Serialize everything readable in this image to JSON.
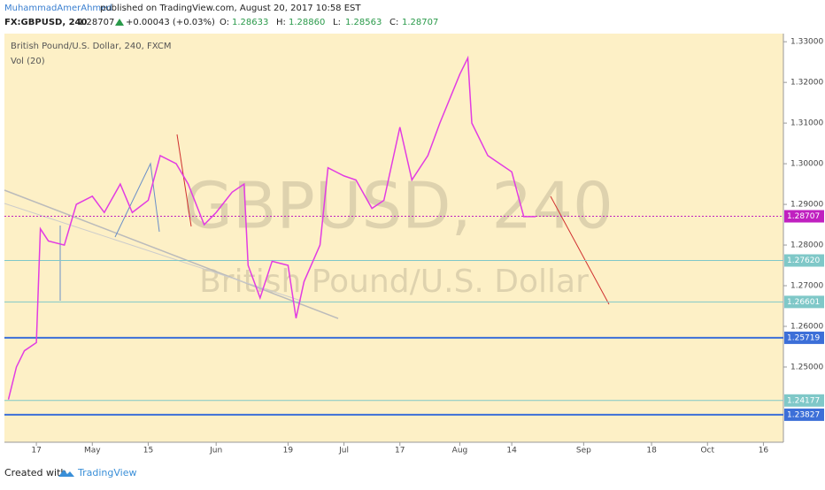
{
  "chart_data": {
    "type": "line",
    "author": "MuhammadAmerAhmed",
    "published": "published on TradingView.com, August 20, 2017 10:58 EST",
    "symbol": "FX:GBPUSD, 240",
    "last": "1.28707",
    "change": "+0.00043 (+0.03%)",
    "ohlc": [
      {
        "label": "O:",
        "value": "1.28633"
      },
      {
        "label": "H:",
        "value": "1.28860"
      },
      {
        "label": "L:",
        "value": "1.28563"
      },
      {
        "label": "C:",
        "value": "1.28707"
      }
    ],
    "title": "British Pound/U.S. Dollar, 240, FXCM",
    "indicator": "Vol (20)",
    "watermark": "GBPUSD, 240",
    "watermark_sub": "British Pound/U.S. Dollar",
    "footer": "Created with",
    "brand": "TradingView",
    "xlim": [
      "2017-04-09",
      "2017-10-21"
    ],
    "xticks": [
      {
        "value": "2017-04-17",
        "label": "17"
      },
      {
        "value": "2017-05-01",
        "label": "May"
      },
      {
        "value": "2017-05-15",
        "label": "15"
      },
      {
        "value": "2017-06-01",
        "label": "Jun"
      },
      {
        "value": "2017-06-19",
        "label": "19"
      },
      {
        "value": "2017-07-03",
        "label": "Jul"
      },
      {
        "value": "2017-07-17",
        "label": "17"
      },
      {
        "value": "2017-08-01",
        "label": "Aug"
      },
      {
        "value": "2017-08-14",
        "label": "14"
      },
      {
        "value": "2017-09-01",
        "label": "Sep"
      },
      {
        "value": "2017-09-18",
        "label": "18"
      },
      {
        "value": "2017-10-02",
        "label": "Oct"
      },
      {
        "value": "2017-10-16",
        "label": "16"
      }
    ],
    "ylim": [
      1.2315,
      1.332
    ],
    "yticks": [
      {
        "value": 1.25,
        "label": "1.25000"
      },
      {
        "value": 1.26,
        "label": "1.26000"
      },
      {
        "value": 1.27,
        "label": "1.27000"
      },
      {
        "value": 1.28,
        "label": "1.28000"
      },
      {
        "value": 1.29,
        "label": "1.29000"
      },
      {
        "value": 1.3,
        "label": "1.30000"
      },
      {
        "value": 1.31,
        "label": "1.31000"
      },
      {
        "value": 1.32,
        "label": "1.32000"
      },
      {
        "value": 1.33,
        "label": "1.33000"
      }
    ],
    "levels": [
      {
        "value": 1.28707,
        "label": "1.28707",
        "color": "#c020c0"
      },
      {
        "value": 1.2762,
        "label": "1.27620",
        "color": "#7fc8c8"
      },
      {
        "value": 1.26601,
        "label": "1.26601",
        "color": "#7fc8c8"
      },
      {
        "value": 1.25719,
        "label": "1.25719",
        "color": "#3c6fd8"
      },
      {
        "value": 1.24177,
        "label": "1.24177",
        "color": "#7fc8c8"
      },
      {
        "value": 1.23827,
        "label": "1.23827",
        "color": "#3c6fd8"
      }
    ],
    "series": [
      {
        "name": "GBPUSD",
        "color": "#e23ce2",
        "x": [
          "2017-04-10",
          "2017-04-12",
          "2017-04-14",
          "2017-04-17",
          "2017-04-18",
          "2017-04-20",
          "2017-04-24",
          "2017-04-27",
          "2017-05-01",
          "2017-05-04",
          "2017-05-08",
          "2017-05-11",
          "2017-05-15",
          "2017-05-18",
          "2017-05-22",
          "2017-05-25",
          "2017-05-29",
          "2017-06-01",
          "2017-06-05",
          "2017-06-08",
          "2017-06-09",
          "2017-06-12",
          "2017-06-15",
          "2017-06-19",
          "2017-06-21",
          "2017-06-23",
          "2017-06-27",
          "2017-06-29",
          "2017-07-03",
          "2017-07-06",
          "2017-07-10",
          "2017-07-13",
          "2017-07-17",
          "2017-07-20",
          "2017-07-24",
          "2017-07-27",
          "2017-08-01",
          "2017-08-03",
          "2017-08-04",
          "2017-08-08",
          "2017-08-11",
          "2017-08-14",
          "2017-08-17",
          "2017-08-20"
        ],
        "values": [
          1.242,
          1.25,
          1.254,
          1.256,
          1.284,
          1.281,
          1.28,
          1.29,
          1.292,
          1.288,
          1.295,
          1.288,
          1.291,
          1.302,
          1.3,
          1.295,
          1.285,
          1.288,
          1.293,
          1.295,
          1.275,
          1.267,
          1.276,
          1.275,
          1.262,
          1.271,
          1.28,
          1.299,
          1.297,
          1.296,
          1.289,
          1.291,
          1.309,
          1.296,
          1.302,
          1.31,
          1.322,
          1.326,
          1.31,
          1.302,
          1.3,
          1.298,
          1.287,
          1.287
        ]
      }
    ]
  }
}
